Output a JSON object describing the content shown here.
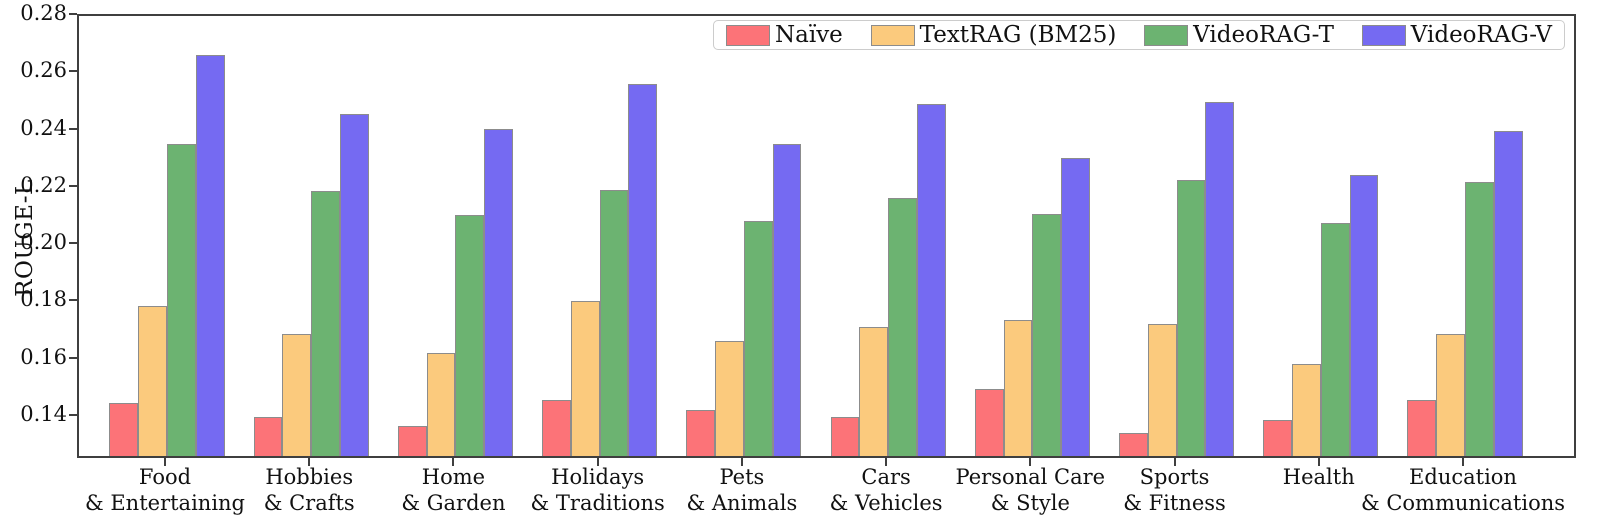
{
  "figure": {
    "background": "#ffffff",
    "axis_color": "#3f3f3f",
    "bar_edge_color": "#8c8c8c"
  },
  "chart_data": {
    "type": "bar",
    "title": "",
    "xlabel": "",
    "ylabel": "ROUGE-L",
    "ylim": [
      0.125,
      0.28
    ],
    "yticks": [
      "0.14",
      "0.16",
      "0.18",
      "0.20",
      "0.22",
      "0.24",
      "0.26",
      "0.28"
    ],
    "grid": false,
    "legend_position": "upper right inside",
    "categories": [
      [
        "Food",
        "& Entertaining"
      ],
      [
        "Hobbies",
        "& Crafts"
      ],
      [
        "Home",
        "& Garden"
      ],
      [
        "Holidays",
        "& Traditions"
      ],
      [
        "Pets",
        "& Animals"
      ],
      [
        "Cars",
        "& Vehicles"
      ],
      [
        "Personal Care",
        "& Style"
      ],
      [
        "Sports",
        "& Fitness"
      ],
      [
        "Health"
      ],
      [
        "Education",
        "& Communications"
      ]
    ],
    "series": [
      {
        "name": "Naïve",
        "color": "#fc7378",
        "values": [
          0.1435,
          0.1385,
          0.1355,
          0.1445,
          0.141,
          0.1385,
          0.1485,
          0.133,
          0.1375,
          0.1445
        ]
      },
      {
        "name": "TextRAG (BM25)",
        "color": "#fbca7d",
        "values": [
          0.1775,
          0.1675,
          0.161,
          0.179,
          0.165,
          0.17,
          0.1725,
          0.171,
          0.157,
          0.1675
        ]
      },
      {
        "name": "VideoRAG-T",
        "color": "#6cb371",
        "values": [
          0.234,
          0.2175,
          0.209,
          0.218,
          0.207,
          0.215,
          0.2095,
          0.2215,
          0.2065,
          0.2205
        ]
      },
      {
        "name": "VideoRAG-V",
        "color": "#756af2",
        "values": [
          0.265,
          0.2445,
          0.239,
          0.255,
          0.234,
          0.248,
          0.229,
          0.2485,
          0.223,
          0.2385
        ]
      }
    ]
  }
}
